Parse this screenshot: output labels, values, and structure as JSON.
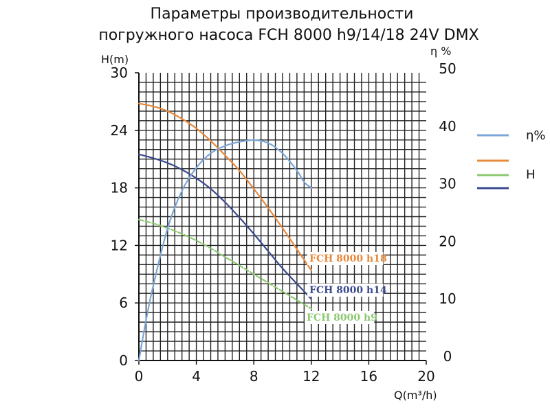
{
  "chart_data": {
    "type": "line",
    "title_lines": [
      "Параметры производительности",
      "погружного насоса FCH 8000 h9/14/18 24V DMX"
    ],
    "xlabel": "Q(m³/h)",
    "ylabel_left": "H(m)",
    "ylabel_right": "η %",
    "xlim": [
      0,
      20
    ],
    "ylim_left": [
      0,
      30
    ],
    "ylim_right": [
      0,
      50
    ],
    "xticks": [
      "0",
      "4",
      "8",
      "12",
      "16",
      "20"
    ],
    "yticks_left": [
      "0",
      "6",
      "12",
      "18",
      "24",
      "30"
    ],
    "yticks_right": [
      "0",
      "10",
      "20",
      "30",
      "40",
      "50"
    ],
    "grid": true,
    "legend": {
      "position": "right",
      "entries": [
        {
          "label": "η%",
          "colors": [
            "#7aa6d8"
          ]
        },
        {
          "label": "H",
          "colors": [
            "#e8883a",
            "#8cc870",
            "#3a4a8c"
          ]
        }
      ]
    },
    "series": [
      {
        "name": "FCH 8000 h18",
        "color": "#e8883a",
        "axis": "left",
        "dash": false,
        "x": [
          0,
          1,
          2,
          3,
          4,
          5,
          6,
          7,
          8,
          9,
          10,
          11,
          12
        ],
        "y": [
          26.8,
          26.5,
          26.0,
          25.2,
          24.2,
          22.9,
          21.4,
          19.8,
          17.9,
          15.9,
          13.8,
          11.6,
          9.4
        ]
      },
      {
        "name": "FCH 8000 h14",
        "color": "#3a4a8c",
        "axis": "left",
        "dash": false,
        "x": [
          0,
          1,
          2,
          3,
          4,
          5,
          6,
          7,
          8,
          9,
          10,
          11,
          12
        ],
        "y": [
          21.5,
          21.1,
          20.6,
          19.9,
          19.0,
          17.9,
          16.5,
          14.9,
          13.2,
          11.4,
          9.6,
          8.0,
          6.4
        ]
      },
      {
        "name": "FCH 8000 h9",
        "color": "#8cc870",
        "axis": "left",
        "dash": true,
        "x": [
          0,
          1,
          2,
          3,
          4,
          5,
          6,
          7,
          8,
          9,
          10,
          11,
          12
        ],
        "y": [
          14.7,
          14.3,
          13.8,
          13.2,
          12.5,
          11.7,
          10.8,
          9.9,
          9.0,
          8.1,
          7.2,
          6.3,
          5.4
        ]
      },
      {
        "name": "η%",
        "color": "#7aa6d8",
        "axis": "right",
        "dash": false,
        "x": [
          0,
          0.5,
          1,
          2,
          3,
          4,
          5,
          6,
          7,
          8,
          9,
          10,
          11,
          11.5,
          12
        ],
        "y": [
          0,
          7,
          13,
          23,
          29.5,
          33.5,
          36,
          37.3,
          38.0,
          38.3,
          37.8,
          36.0,
          33.0,
          31.0,
          30.0
        ]
      }
    ],
    "curve_labels": [
      "FCH 8000 h18",
      "FCH 8000 h14",
      "FCH 8000 h9"
    ]
  }
}
